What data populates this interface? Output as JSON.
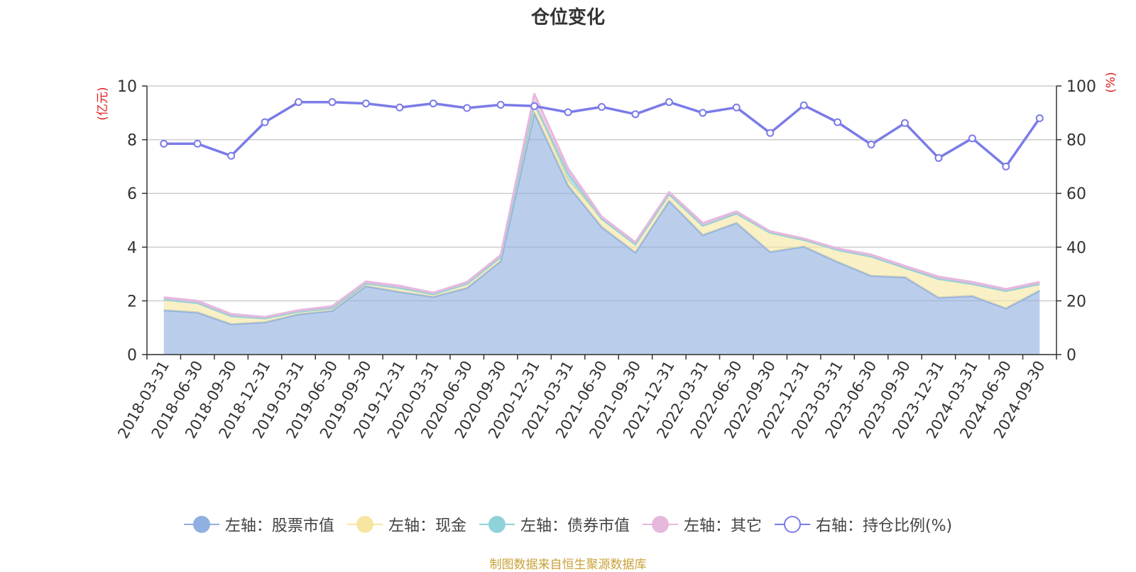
{
  "title": "仓位变化",
  "footer": "制图数据来自恒生聚源数据库",
  "chart_data": {
    "type": "area",
    "x": [
      "2018-03-31",
      "2018-06-30",
      "2018-09-30",
      "2018-12-31",
      "2019-03-31",
      "2019-06-30",
      "2019-09-30",
      "2019-12-31",
      "2020-03-31",
      "2020-06-30",
      "2020-09-30",
      "2020-12-31",
      "2021-03-31",
      "2021-06-30",
      "2021-09-30",
      "2021-12-31",
      "2022-03-31",
      "2022-06-30",
      "2022-09-30",
      "2022-12-31",
      "2023-03-31",
      "2023-06-30",
      "2023-09-30",
      "2023-12-31",
      "2024-03-31",
      "2024-06-30",
      "2024-09-30"
    ],
    "y_left": {
      "unit": "(亿元)",
      "ylim": [
        0,
        10
      ],
      "ticks": [
        "0",
        "2",
        "4",
        "6",
        "8",
        "10"
      ]
    },
    "y_right": {
      "unit": "(%)",
      "ylim": [
        0,
        100
      ],
      "ticks": [
        "0",
        "20",
        "40",
        "60",
        "80",
        "100"
      ]
    },
    "grid": true,
    "legend_position": "bottom",
    "series": [
      {
        "name": "左轴：股票市值",
        "axis": "left",
        "kind": "stacked-area",
        "color": "#8fb0e0",
        "values": [
          1.65,
          1.57,
          1.13,
          1.2,
          1.5,
          1.63,
          2.55,
          2.33,
          2.15,
          2.48,
          3.48,
          9.0,
          6.3,
          4.75,
          3.8,
          5.72,
          4.45,
          4.9,
          3.82,
          4.02,
          3.45,
          2.93,
          2.88,
          2.12,
          2.18,
          1.72,
          2.38
        ]
      },
      {
        "name": "左轴：现金",
        "axis": "left",
        "kind": "stacked-area",
        "color": "#f7e6a2",
        "values": [
          0.4,
          0.35,
          0.3,
          0.15,
          0.1,
          0.1,
          0.1,
          0.15,
          0.1,
          0.15,
          0.15,
          0.35,
          0.2,
          0.3,
          0.3,
          0.25,
          0.35,
          0.35,
          0.72,
          0.25,
          0.45,
          0.72,
          0.35,
          0.7,
          0.45,
          0.65,
          0.25
        ]
      },
      {
        "name": "左轴：债券市值",
        "axis": "left",
        "kind": "stacked-area",
        "color": "#8fd3d8",
        "values": [
          0,
          0,
          0,
          0,
          0,
          0,
          0,
          0,
          0,
          0,
          0,
          0,
          0.25,
          0,
          0,
          0,
          0,
          0,
          0,
          0,
          0,
          0,
          0,
          0,
          0,
          0,
          0
        ]
      },
      {
        "name": "左轴：其它",
        "axis": "left",
        "kind": "stacked-area",
        "color": "#e6b8dd",
        "values": [
          0.08,
          0.08,
          0.08,
          0.05,
          0.05,
          0.07,
          0.07,
          0.08,
          0.05,
          0.07,
          0.07,
          0.35,
          0.18,
          0.08,
          0.08,
          0.08,
          0.1,
          0.08,
          0.05,
          0.05,
          0.05,
          0.07,
          0.07,
          0.08,
          0.07,
          0.07,
          0.07
        ]
      },
      {
        "name": "右轴：持仓比例(%)",
        "axis": "right",
        "kind": "line",
        "color": "#7b7be8",
        "values": [
          78.5,
          78.5,
          74.0,
          86.5,
          94.0,
          94.0,
          93.5,
          92.0,
          93.5,
          91.8,
          93.0,
          92.5,
          90.2,
          92.2,
          89.5,
          94.0,
          90.0,
          92.0,
          82.5,
          92.8,
          86.5,
          78.2,
          86.2,
          73.2,
          80.5,
          70.0,
          88.0
        ]
      }
    ]
  }
}
